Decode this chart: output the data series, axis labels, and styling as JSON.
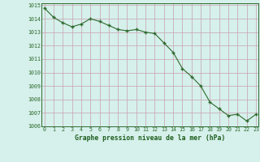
{
  "x": [
    0,
    1,
    2,
    3,
    4,
    5,
    6,
    7,
    8,
    9,
    10,
    11,
    12,
    13,
    14,
    15,
    16,
    17,
    18,
    19,
    20,
    21,
    22,
    23
  ],
  "y": [
    1014.8,
    1014.1,
    1013.7,
    1013.4,
    1013.6,
    1014.0,
    1013.8,
    1013.5,
    1013.2,
    1013.1,
    1013.2,
    1013.0,
    1012.9,
    1012.2,
    1011.5,
    1010.3,
    1009.7,
    1009.0,
    1007.8,
    1007.3,
    1006.8,
    1006.9,
    1006.4,
    1006.9
  ],
  "line_color": "#2d6a2d",
  "marker_color": "#2d6a2d",
  "bg_color": "#d6f0eb",
  "grid_color_h": "#c8a8b8",
  "grid_color_v": "#c8b0b8",
  "xlabel": "Graphe pression niveau de la mer (hPa)",
  "xlabel_color": "#1a5c1a",
  "tick_color": "#2d6a2d",
  "ylim": [
    1006,
    1015
  ],
  "xlim": [
    -0.3,
    23.3
  ],
  "yticks": [
    1006,
    1007,
    1008,
    1009,
    1010,
    1011,
    1012,
    1013,
    1014,
    1015
  ],
  "xticks": [
    0,
    1,
    2,
    3,
    4,
    5,
    6,
    7,
    8,
    9,
    10,
    11,
    12,
    13,
    14,
    15,
    16,
    17,
    18,
    19,
    20,
    21,
    22,
    23
  ]
}
